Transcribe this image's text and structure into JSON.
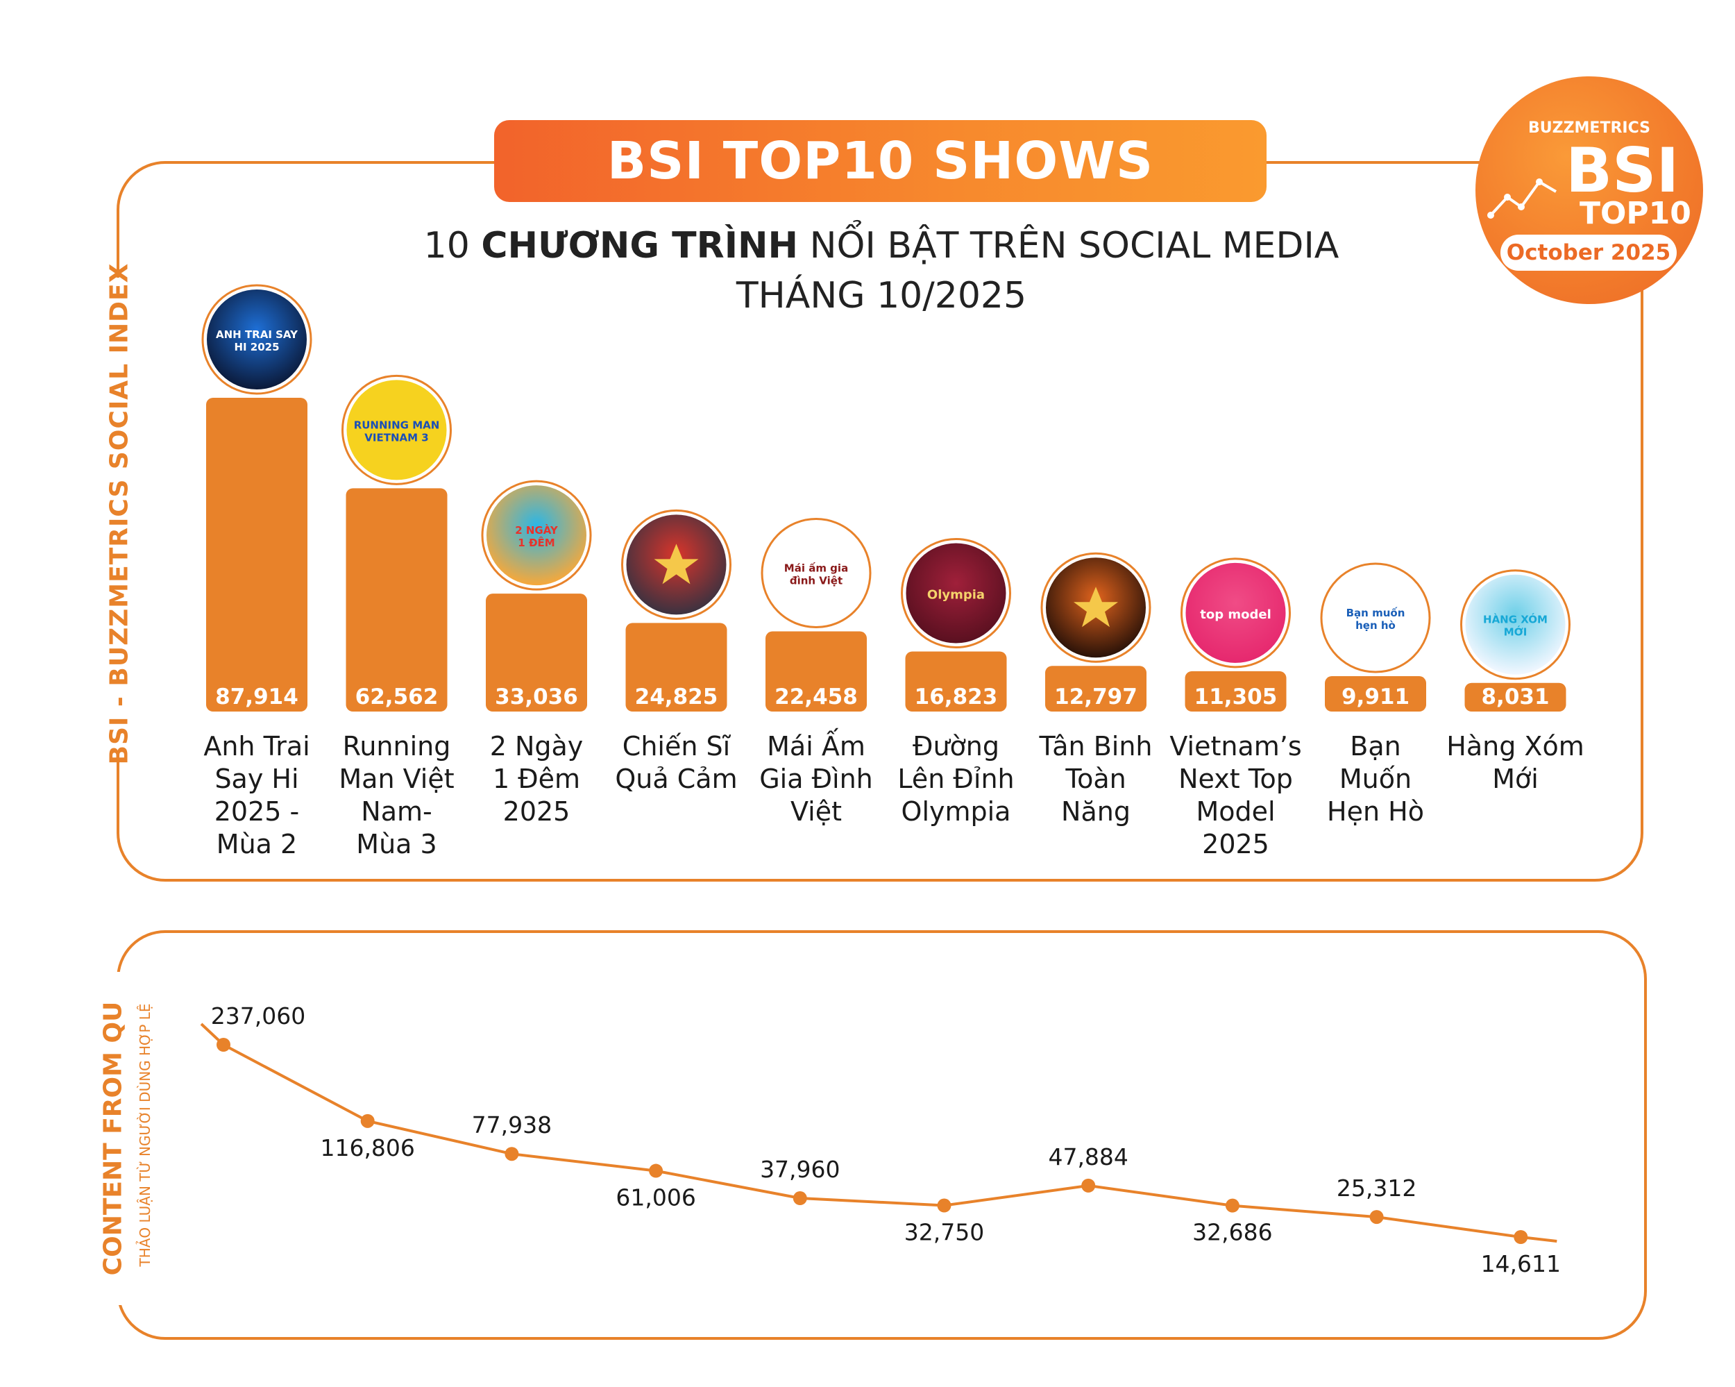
{
  "header": {
    "title": "BSI TOP10 SHOWS",
    "subtitle_line1_pre": "10 ",
    "subtitle_line1_bold": "CHƯƠNG TRÌNH",
    "subtitle_line1_post": " NỔI BẬT TRÊN SOCIAL MEDIA",
    "subtitle_line2": "THÁNG 10/2025"
  },
  "badge": {
    "brand": "BUZZMETRICS",
    "bsi": "BSI",
    "top10": "TOP10",
    "month": "October 2025"
  },
  "axis_labels": {
    "bar_axis": "BSI - BUZZMETRICS SOCIAL INDEX",
    "line_axis_main": "CONTENT FROM QU",
    "line_axis_sub": "THẢO LUẬN TỪ NGƯỜI DÙNG HỢP LỆ"
  },
  "logo_texts": [
    "ANH TRAI SAY HI 2025",
    "RUNNING MAN VIETNAM 3",
    "2 NGÀY 1 ĐÊM",
    "",
    "Mái ấm gia đình Việt",
    "Olympia",
    "",
    "top model",
    "Bạn muốn hẹn hò",
    "HÀNG XÓM MỚI"
  ],
  "colors": {
    "bar": "#e8822a",
    "line": "#e8822a",
    "accent_dark": "#ec6a25"
  },
  "chart_data": [
    {
      "type": "bar",
      "title": "BSI TOP10 SHOWS",
      "ylabel": "BSI - BUZZMETRICS SOCIAL INDEX",
      "categories": [
        "Anh Trai Say Hi 2025 - Mùa 2",
        "Running Man Việt Nam- Mùa 3",
        "2 Ngày 1 Đêm 2025",
        "Chiến Sĩ Quả Cảm",
        "Mái Ấm Gia Đình Việt",
        "Đường Lên Đỉnh Olympia",
        "Tân Binh Toàn Năng",
        "Vietnam’s Next Top Model 2025",
        "Bạn Muốn Hẹn Hò",
        "Hàng Xóm Mới"
      ],
      "category_lines": [
        [
          "Anh Trai",
          "Say Hi",
          "2025 -",
          "Mùa 2"
        ],
        [
          "Running",
          "Man Việt",
          "Nam-",
          "Mùa 3"
        ],
        [
          "2 Ngày",
          "1 Đêm",
          "2025"
        ],
        [
          "Chiến Sĩ",
          "Quả Cảm"
        ],
        [
          "Mái Ấm",
          "Gia Đình",
          "Việt"
        ],
        [
          "Đường",
          "Lên Đỉnh",
          "Olympia"
        ],
        [
          "Tân Binh",
          "Toàn",
          "Năng"
        ],
        [
          "Vietnam’s",
          "Next Top",
          "Model",
          "2025"
        ],
        [
          "Bạn",
          "Muốn",
          "Hẹn Hò"
        ],
        [
          "Hàng Xóm",
          "Mới"
        ]
      ],
      "values": [
        87914,
        62562,
        33036,
        24825,
        22458,
        16823,
        12797,
        11305,
        9911,
        8031
      ],
      "value_labels": [
        "87,914",
        "62,562",
        "33,036",
        "24,825",
        "22,458",
        "16,823",
        "12,797",
        "11,305",
        "9,911",
        "8,031"
      ]
    },
    {
      "type": "line",
      "title": "CONTENT FROM QU",
      "ylabel": "THẢO LUẬN TỪ NGƯỜI DÙNG HỢP LỆ",
      "values": [
        237060,
        116806,
        77938,
        61006,
        37960,
        32750,
        47884,
        32686,
        25312,
        14611
      ],
      "value_labels": [
        "237,060",
        "116,806",
        "77,938",
        "61,006",
        "37,960",
        "32,750",
        "47,884",
        "32,686",
        "25,312",
        "14,611"
      ],
      "label_position": [
        "above",
        "below",
        "above",
        "below",
        "above",
        "below",
        "above",
        "below",
        "above",
        "below"
      ]
    }
  ]
}
